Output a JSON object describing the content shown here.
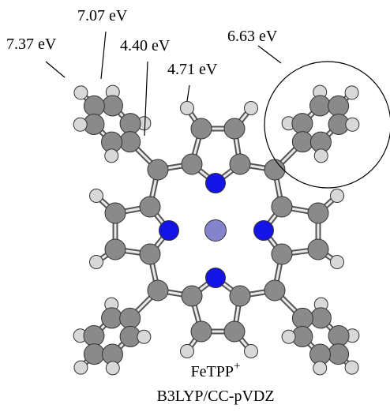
{
  "labels": [
    {
      "text": "7.37 eV"
    },
    {
      "text": "7.07 eV"
    },
    {
      "text": "4.40 eV"
    },
    {
      "text": "4.71 eV"
    },
    {
      "text": "6.63 eV"
    }
  ],
  "molecule": {
    "name": "FeTPP",
    "charge": "+"
  },
  "method": "B3LYP/CC-pVDZ"
}
